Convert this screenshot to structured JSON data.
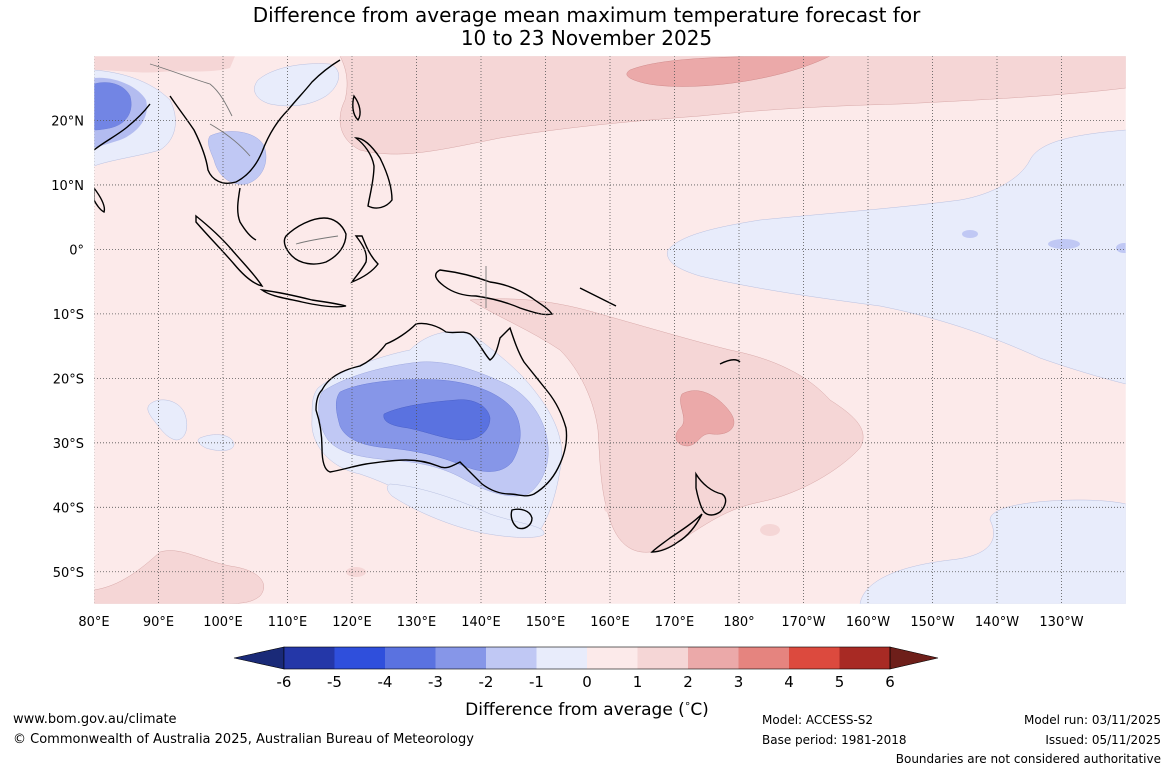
{
  "title": {
    "line1": "Difference from average mean maximum temperature forecast for",
    "line2": "10 to 23 November 2025"
  },
  "map": {
    "lon_labels": [
      "80°E",
      "90°E",
      "100°E",
      "110°E",
      "120°E",
      "130°E",
      "140°E",
      "150°E",
      "160°E",
      "170°E",
      "180°",
      "170°W",
      "160°W",
      "150°W",
      "140°W",
      "130°W"
    ],
    "lat_labels": [
      "20°N",
      "10°N",
      "0°",
      "10°S",
      "20°S",
      "30°S",
      "40°S",
      "50°S"
    ],
    "lon_range": [
      80,
      240
    ],
    "lat_range": [
      -55,
      30
    ]
  },
  "colorbar": {
    "ticks": [
      "-6",
      "-5",
      "-4",
      "-3",
      "-2",
      "-1",
      "0",
      "1",
      "2",
      "3",
      "4",
      "5",
      "6"
    ],
    "colors": [
      "#1a2a78",
      "#2437a8",
      "#2f4fdc",
      "#5a72e0",
      "#8696e8",
      "#c0c8f4",
      "#e8ecfb",
      "#fceaea",
      "#f5d6d6",
      "#eba9a9",
      "#e5847f",
      "#dc4a3e",
      "#a82a24",
      "#6e1f1a"
    ],
    "title": "Difference from average (",
    "title_unit": "C)",
    "title_degree": "°"
  },
  "footer": {
    "website": "www.bom.gov.au/climate",
    "copyright": "© Commonwealth of Australia 2025, Australian Bureau of Meteorology",
    "model": "Model: ACCESS-S2",
    "base_period": "Base period: 1981-2018",
    "model_run": "Model run: 03/11/2025",
    "issued": "Issued: 05/11/2025",
    "disclaimer": "Boundaries are not considered authoritative"
  }
}
